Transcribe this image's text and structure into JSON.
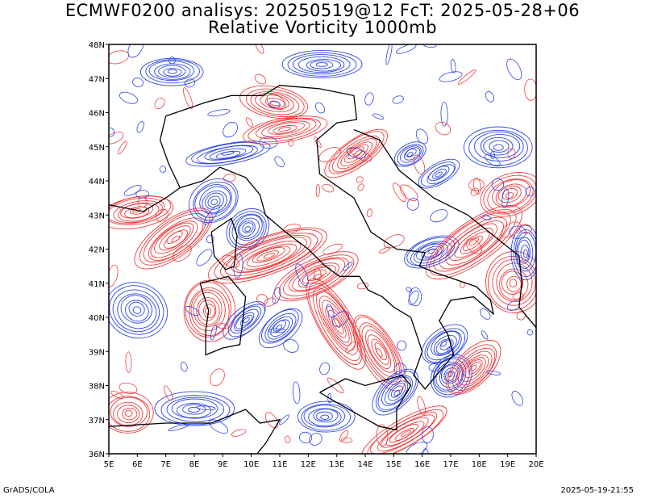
{
  "title": {
    "line1": "ECMWF0200 analisys: 20250519@12 FcT: 2025-05-28+06",
    "line2": "Relative Vorticity 1000mb"
  },
  "footer": {
    "left": "GrADS/COLA",
    "right": "2025-05-19-21:55"
  },
  "map": {
    "lon_range": [
      5,
      20
    ],
    "lat_range": [
      36,
      48
    ],
    "x_ticks": [
      "5E",
      "6E",
      "7E",
      "8E",
      "9E",
      "10E",
      "11E",
      "12E",
      "13E",
      "14E",
      "15E",
      "16E",
      "17E",
      "18E",
      "19E",
      "20E"
    ],
    "y_ticks": [
      "36N",
      "37N",
      "38N",
      "39N",
      "40N",
      "41N",
      "42N",
      "43N",
      "44N",
      "45N",
      "46N",
      "47N",
      "48N"
    ],
    "colors": {
      "positive": "#f03c3c",
      "negative": "#2d46e6",
      "coastline": "#000000",
      "background": "#ffffff"
    }
  }
}
